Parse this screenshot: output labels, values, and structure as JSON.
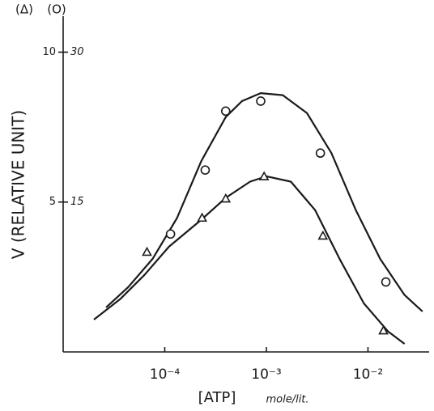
{
  "chart_data": {
    "type": "scatter",
    "y_symbol": "(Δ)",
    "y2_symbol": "(O)",
    "y_label": "V (RELATIVE UNIT)",
    "x_label": "[ATP]",
    "x_unit": "mole/lit.",
    "xscale": "log",
    "xlim": [
      1e-05,
      0.04
    ],
    "xticks": [
      {
        "value": 0.0001,
        "label": "10⁻⁴"
      },
      {
        "value": 0.001,
        "label": "10⁻³"
      },
      {
        "value": 0.01,
        "label": "10⁻²"
      }
    ],
    "ylim": [
      0,
      11.2
    ],
    "yticks": [
      5,
      10
    ],
    "y2lim": [
      0,
      33.6
    ],
    "y2ticks": [
      15,
      30
    ],
    "color": "#1a1a1a",
    "series": [
      {
        "style": "line",
        "axis": "y2",
        "x": [
          2.65e-05,
          4.37e-05,
          7.59e-05,
          0.000132,
          0.000229,
          0.000398,
          0.000575,
          0.000879,
          0.00145,
          0.00251,
          0.00437,
          0.00759,
          0.0132,
          0.0229,
          0.0344
        ],
        "values": [
          4.46,
          6.49,
          9.32,
          13.4,
          19.1,
          23.5,
          25.1,
          25.9,
          25.7,
          23.9,
          19.9,
          14.2,
          9.3,
          5.7,
          4.05
        ]
      },
      {
        "style": "line",
        "axis": "y",
        "x": [
          2.01e-05,
          3.63e-05,
          6.31e-05,
          0.00011,
          0.000229,
          0.000398,
          0.000692,
          0.001,
          0.00174,
          0.00302,
          0.00525,
          0.00912,
          0.0158,
          0.0229
        ],
        "values": [
          1.08,
          1.76,
          2.57,
          3.51,
          4.41,
          5.14,
          5.68,
          5.86,
          5.68,
          4.73,
          3.11,
          1.62,
          0.68,
          0.27
        ]
      },
      {
        "style": "markers",
        "marker": "circle",
        "axis": "y2",
        "x": [
          0.000114,
          0.00025,
          0.000398,
          0.00088,
          0.0034,
          0.015
        ],
        "values": [
          11.8,
          18.2,
          24.1,
          25.1,
          19.9,
          7.0
        ]
      },
      {
        "style": "markers",
        "marker": "triangle",
        "axis": "y",
        "x": [
          6.68e-05,
          0.000233,
          0.000398,
          0.00095,
          0.0036,
          0.0142
        ],
        "values": [
          3.32,
          4.46,
          5.1,
          5.84,
          3.86,
          0.7
        ]
      }
    ]
  }
}
